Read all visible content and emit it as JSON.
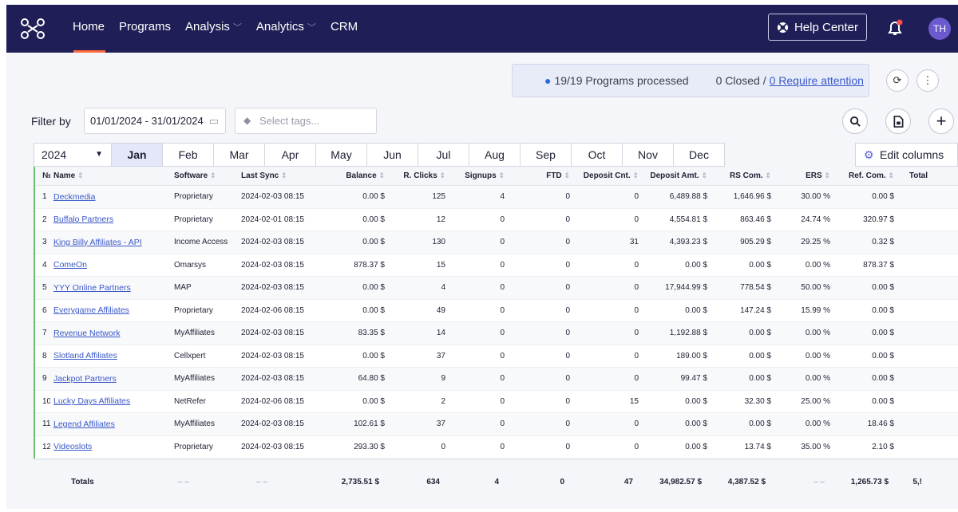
{
  "nav": {
    "items": [
      {
        "label": "Home",
        "dropdown": false,
        "active": true
      },
      {
        "label": "Programs",
        "dropdown": false
      },
      {
        "label": "Analysis",
        "dropdown": true
      },
      {
        "label": "Analytics",
        "dropdown": true
      },
      {
        "label": "CRM",
        "dropdown": false
      }
    ],
    "help_label": "Help Center",
    "avatar_initials": "TH"
  },
  "status": {
    "processed": "19/19 Programs processed",
    "closed": "0 Closed /",
    "attention": "0 Require attention"
  },
  "filter": {
    "label": "Filter by",
    "date_range": "01/01/2024 - 31/01/2024",
    "tags_placeholder": "Select tags..."
  },
  "period": {
    "year": "2024",
    "months": [
      "Jan",
      "Feb",
      "Mar",
      "Apr",
      "May",
      "Jun",
      "Jul",
      "Aug",
      "Sep",
      "Oct",
      "Nov",
      "Dec"
    ],
    "active_month": "Jan",
    "edit_columns": "Edit columns"
  },
  "table": {
    "headers": {
      "num": "№",
      "name": "Name",
      "software": "Software",
      "last_sync": "Last Sync",
      "balance": "Balance",
      "r_clicks": "R. Clicks",
      "signups": "Signups",
      "ftd": "FTD",
      "deposit_cnt": "Deposit Cnt.",
      "deposit_amt": "Deposit Amt.",
      "rs_com": "RS Com.",
      "ers": "ERS",
      "ref_com": "Ref. Com.",
      "total": "Total"
    },
    "rows": [
      {
        "num": "1",
        "name": "Deckmedia",
        "software": "Proprietary",
        "last_sync": "2024-02-03 08:15",
        "balance": "0.00 $",
        "r_clicks": "125",
        "signups": "4",
        "ftd": "0",
        "deposit_cnt": "0",
        "deposit_amt": "6,489.88 $",
        "rs_com": "1,646.96 $",
        "ers": "30.00 %",
        "ref_com": "0.00 $"
      },
      {
        "num": "2",
        "name": "Buffalo Partners",
        "software": "Proprietary",
        "last_sync": "2024-02-01 08:15",
        "balance": "0.00 $",
        "r_clicks": "12",
        "signups": "0",
        "ftd": "0",
        "deposit_cnt": "0",
        "deposit_amt": "4,554.81 $",
        "rs_com": "863.46 $",
        "ers": "24.74 %",
        "ref_com": "320.97 $"
      },
      {
        "num": "3",
        "name": "King Billy Affiliates - API",
        "software": "Income Access",
        "last_sync": "2024-02-03 08:15",
        "balance": "0.00 $",
        "r_clicks": "130",
        "signups": "0",
        "ftd": "0",
        "deposit_cnt": "31",
        "deposit_amt": "4,393.23 $",
        "rs_com": "905.29 $",
        "ers": "29.25 %",
        "ref_com": "0.32 $"
      },
      {
        "num": "4",
        "name": "ComeOn",
        "software": "Omarsys",
        "last_sync": "2024-02-03 08:15",
        "balance": "878.37 $",
        "r_clicks": "15",
        "signups": "0",
        "ftd": "0",
        "deposit_cnt": "0",
        "deposit_amt": "0.00 $",
        "rs_com": "0.00 $",
        "ers": "0.00 %",
        "ref_com": "878.37 $"
      },
      {
        "num": "5",
        "name": "YYY Online Partners",
        "software": "MAP",
        "last_sync": "2024-02-03 08:15",
        "balance": "0.00 $",
        "r_clicks": "4",
        "signups": "0",
        "ftd": "0",
        "deposit_cnt": "0",
        "deposit_amt": "17,944.99 $",
        "rs_com": "778.54 $",
        "ers": "50.00 %",
        "ref_com": "0.00 $"
      },
      {
        "num": "6",
        "name": "Everygame Affiliates",
        "software": "Proprietary",
        "last_sync": "2024-02-06 08:15",
        "balance": "0.00 $",
        "r_clicks": "49",
        "signups": "0",
        "ftd": "0",
        "deposit_cnt": "0",
        "deposit_amt": "0.00 $",
        "rs_com": "147.24 $",
        "ers": "15.99 %",
        "ref_com": "0.00 $"
      },
      {
        "num": "7",
        "name": "Revenue Network",
        "software": "MyAffiliates",
        "last_sync": "2024-02-03 08:15",
        "balance": "83.35 $",
        "r_clicks": "14",
        "signups": "0",
        "ftd": "0",
        "deposit_cnt": "0",
        "deposit_amt": "1,192.88 $",
        "rs_com": "0.00 $",
        "ers": "0.00 %",
        "ref_com": "0.00 $"
      },
      {
        "num": "8",
        "name": "Slotland Affiliates",
        "software": "Cellxpert",
        "last_sync": "2024-02-03 08:15",
        "balance": "0.00 $",
        "r_clicks": "37",
        "signups": "0",
        "ftd": "0",
        "deposit_cnt": "0",
        "deposit_amt": "189.00 $",
        "rs_com": "0.00 $",
        "ers": "0.00 %",
        "ref_com": "0.00 $"
      },
      {
        "num": "9",
        "name": "Jackpot Partners",
        "software": "MyAffiliates",
        "last_sync": "2024-02-03 08:15",
        "balance": "64.80 $",
        "r_clicks": "9",
        "signups": "0",
        "ftd": "0",
        "deposit_cnt": "0",
        "deposit_amt": "99.47 $",
        "rs_com": "0.00 $",
        "ers": "0.00 %",
        "ref_com": "0.00 $"
      },
      {
        "num": "10",
        "name": "Lucky Days Affiliates",
        "software": "NetRefer",
        "last_sync": "2024-02-06 08:15",
        "balance": "0.00 $",
        "r_clicks": "2",
        "signups": "0",
        "ftd": "0",
        "deposit_cnt": "15",
        "deposit_amt": "0.00 $",
        "rs_com": "32.30 $",
        "ers": "25.00 %",
        "ref_com": "0.00 $"
      },
      {
        "num": "11",
        "name": "Legend Affiliates",
        "software": "MyAffiliates",
        "last_sync": "2024-02-03 08:15",
        "balance": "102.61 $",
        "r_clicks": "37",
        "signups": "0",
        "ftd": "0",
        "deposit_cnt": "0",
        "deposit_amt": "0.00 $",
        "rs_com": "0.00 $",
        "ers": "0.00 %",
        "ref_com": "18.46 $"
      },
      {
        "num": "12",
        "name": "Videoslots",
        "software": "Proprietary",
        "last_sync": "2024-02-03 08:15",
        "balance": "293.30 $",
        "r_clicks": "0",
        "signups": "0",
        "ftd": "0",
        "deposit_cnt": "0",
        "deposit_amt": "0.00 $",
        "rs_com": "13.74 $",
        "ers": "35.00 %",
        "ref_com": "2.10 $"
      }
    ],
    "totals": {
      "label": "Totals",
      "software": "– –",
      "last_sync": "– –",
      "balance": "2,735.51 $",
      "r_clicks": "634",
      "signups": "4",
      "ftd": "0",
      "deposit_cnt": "47",
      "deposit_amt": "34,982.57 $",
      "rs_com": "4,387.52 $",
      "ers": "– –",
      "ref_com": "1,265.73 $",
      "total": "5,!"
    }
  },
  "colors": {
    "nav_bg": "#1f1e56",
    "accent": "#ff6a3d",
    "link": "#3b58c7",
    "row_marker": "#6cbf6c"
  }
}
